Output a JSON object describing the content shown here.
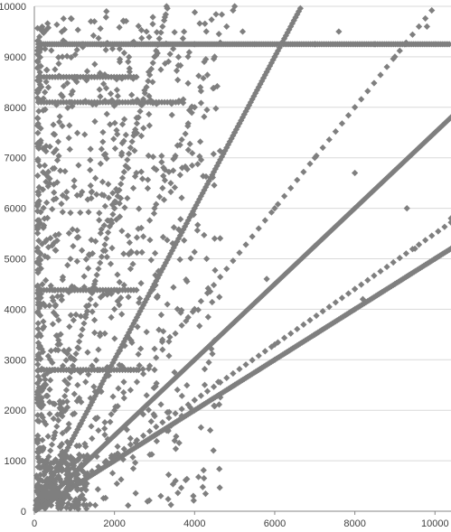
{
  "chart_data": {
    "type": "scatter",
    "title": "",
    "xlabel": "",
    "ylabel": "",
    "xlim": [
      0,
      10400
    ],
    "ylim": [
      0,
      10000
    ],
    "grid": {
      "horizontal": true,
      "vertical": false
    },
    "legend": "none",
    "x_ticks": [
      "0",
      "2000",
      "4000",
      "6000",
      "8000",
      "10000"
    ],
    "y_ticks": [
      "0",
      "1000",
      "2000",
      "3000",
      "4000",
      "5000",
      "6000",
      "7000",
      "8000",
      "9000",
      "10000"
    ],
    "marker": {
      "shape": "diamond",
      "color": "#7f7f7f"
    },
    "colors": {
      "grid": "#d9d9d9",
      "axis": "#868686",
      "label": "#404040",
      "marker": "#7f7f7f"
    },
    "series": [
      {
        "ray_slopes": [
          0.5,
          0.55,
          0.75,
          1.0,
          1.5,
          2.0,
          3.0
        ],
        "dense_ray_slopes": [
          0.5,
          0.75,
          1.5,
          3.0
        ],
        "horizontal_bands_y": [
          9250,
          8600,
          8100,
          4380,
          2800
        ],
        "points": [
          [
            1000,
            500
          ],
          [
            2000,
            1000
          ],
          [
            3000,
            1500
          ],
          [
            4000,
            2000
          ],
          [
            5000,
            2500
          ],
          [
            6000,
            3000
          ],
          [
            7000,
            3500
          ],
          [
            8000,
            4000
          ],
          [
            9000,
            4500
          ],
          [
            10000,
            5000
          ],
          [
            10400,
            5200
          ],
          [
            1000,
            750
          ],
          [
            2000,
            1500
          ],
          [
            3000,
            2250
          ],
          [
            4000,
            3000
          ],
          [
            5000,
            3750
          ],
          [
            6000,
            4500
          ],
          [
            7000,
            5250
          ],
          [
            8000,
            6000
          ],
          [
            9000,
            6750
          ],
          [
            10000,
            7500
          ],
          [
            10400,
            7800
          ],
          [
            1000,
            1500
          ],
          [
            2000,
            3000
          ],
          [
            3000,
            4500
          ],
          [
            4000,
            6000
          ],
          [
            5000,
            7500
          ],
          [
            6000,
            9000
          ],
          [
            6150,
            9250
          ],
          [
            500,
            1500
          ],
          [
            1000,
            3000
          ],
          [
            1500,
            4500
          ],
          [
            2000,
            6000
          ],
          [
            2500,
            7500
          ],
          [
            3000,
            9000
          ],
          [
            3300,
            10000
          ],
          [
            2000,
            2000
          ],
          [
            4000,
            4000
          ],
          [
            6000,
            6000
          ],
          [
            8000,
            8000
          ],
          [
            9000,
            9000
          ],
          [
            9250,
            9250
          ],
          [
            2000,
            4000
          ],
          [
            3000,
            6000
          ],
          [
            4000,
            8000
          ],
          [
            4500,
            9000
          ],
          [
            5000,
            10000
          ],
          [
            2000,
            1100
          ],
          [
            4000,
            2200
          ],
          [
            6000,
            3300
          ],
          [
            8000,
            4400
          ],
          [
            9500,
            5200
          ],
          [
            10400,
            5800
          ],
          [
            1200,
            9250
          ],
          [
            2500,
            9250
          ],
          [
            4000,
            9250
          ],
          [
            5500,
            9250
          ],
          [
            7000,
            9250
          ],
          [
            8500,
            9250
          ],
          [
            10000,
            9250
          ],
          [
            1000,
            8600
          ],
          [
            1500,
            8600
          ],
          [
            2200,
            8600
          ],
          [
            900,
            8100
          ],
          [
            1500,
            8100
          ],
          [
            2100,
            8100
          ],
          [
            2600,
            8100
          ],
          [
            3400,
            8100
          ],
          [
            500,
            4380
          ],
          [
            1000,
            4380
          ],
          [
            1400,
            4380
          ],
          [
            2000,
            4380
          ],
          [
            500,
            2800
          ],
          [
            1000,
            2800
          ],
          [
            1600,
            2800
          ],
          [
            2400,
            2800
          ],
          [
            3000,
            2800
          ],
          [
            9300,
            6000
          ],
          [
            8000,
            6700
          ],
          [
            8200,
            4200
          ],
          [
            4500,
            5400
          ],
          [
            1800,
            9900
          ],
          [
            1500,
            9700
          ],
          [
            2800,
            9500
          ],
          [
            5200,
            9500
          ],
          [
            7600,
            9500
          ],
          [
            9800,
            9600
          ],
          [
            3500,
            7000
          ],
          [
            4300,
            5000
          ],
          [
            5800,
            4600
          ],
          [
            7000,
            7000
          ],
          [
            600,
            800
          ],
          [
            300,
            400
          ],
          [
            200,
            200
          ],
          [
            100,
            100
          ]
        ]
      }
    ]
  }
}
